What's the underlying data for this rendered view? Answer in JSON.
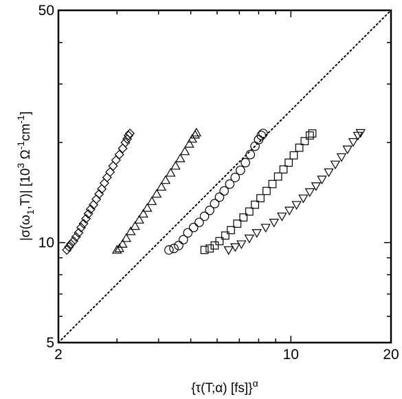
{
  "chart_data": {
    "type": "scatter",
    "title": "",
    "xlabel": "{τ(T;α) [fs]}^α",
    "ylabel": "|σ(ω₁,T)| [10³ Ω⁻¹cm⁻¹]",
    "xscale": "log",
    "yscale": "log",
    "xlim": [
      2,
      20
    ],
    "ylim": [
      5,
      50
    ],
    "x_ticks": [
      2,
      10,
      20
    ],
    "y_ticks": [
      5,
      10,
      50
    ],
    "grid": false,
    "reference_line": {
      "style": "dotted",
      "points": [
        [
          2,
          5
        ],
        [
          20,
          50
        ]
      ]
    },
    "series": [
      {
        "marker": "diamond",
        "points": [
          [
            2.12,
            9.5
          ],
          [
            2.15,
            9.7
          ],
          [
            2.18,
            9.9
          ],
          [
            2.22,
            10.1
          ],
          [
            2.26,
            10.4
          ],
          [
            2.3,
            10.7
          ],
          [
            2.34,
            11.1
          ],
          [
            2.38,
            11.4
          ],
          [
            2.42,
            11.8
          ],
          [
            2.46,
            12.2
          ],
          [
            2.5,
            12.6
          ],
          [
            2.55,
            13.0
          ],
          [
            2.6,
            13.5
          ],
          [
            2.65,
            14.0
          ],
          [
            2.7,
            14.5
          ],
          [
            2.75,
            15.1
          ],
          [
            2.8,
            15.7
          ],
          [
            2.86,
            16.3
          ],
          [
            2.92,
            17.0
          ],
          [
            2.98,
            17.7
          ],
          [
            3.05,
            18.4
          ],
          [
            3.12,
            19.2
          ],
          [
            3.18,
            20.0
          ],
          [
            3.22,
            20.5
          ],
          [
            3.25,
            21.0
          ],
          [
            3.28,
            21.3
          ]
        ]
      },
      {
        "marker": "triangle-up",
        "points": [
          [
            3.0,
            9.5
          ],
          [
            3.05,
            9.6
          ],
          [
            3.12,
            9.9
          ],
          [
            3.2,
            10.3
          ],
          [
            3.3,
            10.8
          ],
          [
            3.4,
            11.2
          ],
          [
            3.5,
            11.7
          ],
          [
            3.6,
            12.2
          ],
          [
            3.7,
            12.7
          ],
          [
            3.82,
            13.3
          ],
          [
            3.95,
            14.0
          ],
          [
            4.08,
            14.7
          ],
          [
            4.2,
            15.4
          ],
          [
            4.35,
            16.2
          ],
          [
            4.5,
            17.0
          ],
          [
            4.65,
            17.9
          ],
          [
            4.8,
            18.8
          ],
          [
            4.95,
            19.8
          ],
          [
            5.05,
            20.5
          ],
          [
            5.15,
            21.1
          ],
          [
            5.2,
            21.4
          ]
        ]
      },
      {
        "marker": "circle",
        "points": [
          [
            4.3,
            9.5
          ],
          [
            4.45,
            9.6
          ],
          [
            4.6,
            9.8
          ],
          [
            4.75,
            10.2
          ],
          [
            4.9,
            10.7
          ],
          [
            5.1,
            11.1
          ],
          [
            5.3,
            11.5
          ],
          [
            5.5,
            12.0
          ],
          [
            5.7,
            12.5
          ],
          [
            5.9,
            13.1
          ],
          [
            6.1,
            13.7
          ],
          [
            6.3,
            14.3
          ],
          [
            6.55,
            15.0
          ],
          [
            6.8,
            15.7
          ],
          [
            7.05,
            16.5
          ],
          [
            7.3,
            17.4
          ],
          [
            7.55,
            18.4
          ],
          [
            7.8,
            19.5
          ],
          [
            8.0,
            20.4
          ],
          [
            8.15,
            21.0
          ],
          [
            8.25,
            21.3
          ]
        ]
      },
      {
        "marker": "square",
        "points": [
          [
            5.5,
            9.5
          ],
          [
            5.7,
            9.6
          ],
          [
            5.9,
            9.8
          ],
          [
            6.1,
            10.1
          ],
          [
            6.35,
            10.5
          ],
          [
            6.6,
            10.9
          ],
          [
            6.9,
            11.4
          ],
          [
            7.2,
            11.9
          ],
          [
            7.5,
            12.4
          ],
          [
            7.8,
            13.0
          ],
          [
            8.1,
            13.6
          ],
          [
            8.45,
            14.3
          ],
          [
            8.8,
            15.0
          ],
          [
            9.15,
            15.8
          ],
          [
            9.5,
            16.6
          ],
          [
            9.85,
            17.4
          ],
          [
            10.2,
            18.3
          ],
          [
            10.6,
            19.3
          ],
          [
            11.0,
            20.2
          ],
          [
            11.4,
            21.0
          ],
          [
            11.6,
            21.3
          ]
        ]
      },
      {
        "marker": "triangle-down",
        "points": [
          [
            6.5,
            9.5
          ],
          [
            6.8,
            9.7
          ],
          [
            7.1,
            9.9
          ],
          [
            7.5,
            10.3
          ],
          [
            7.9,
            10.7
          ],
          [
            8.4,
            11.1
          ],
          [
            8.9,
            11.5
          ],
          [
            9.4,
            12.0
          ],
          [
            9.9,
            12.5
          ],
          [
            10.4,
            13.0
          ],
          [
            10.9,
            13.6
          ],
          [
            11.4,
            14.2
          ],
          [
            11.9,
            14.8
          ],
          [
            12.4,
            15.5
          ],
          [
            13.0,
            16.3
          ],
          [
            13.6,
            17.2
          ],
          [
            14.2,
            18.1
          ],
          [
            14.8,
            19.1
          ],
          [
            15.4,
            20.1
          ],
          [
            15.9,
            21.0
          ],
          [
            16.2,
            21.4
          ]
        ]
      }
    ]
  }
}
